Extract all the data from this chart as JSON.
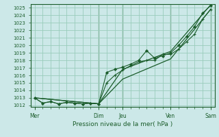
{
  "bg_color": "#cce8e8",
  "grid_color": "#99ccbb",
  "line_color": "#1a5c2a",
  "ylabel_text": "Pression niveau de la mer( hPa )",
  "ylim": [
    1011.8,
    1025.5
  ],
  "yticks": [
    1012,
    1013,
    1014,
    1015,
    1016,
    1017,
    1018,
    1019,
    1020,
    1021,
    1022,
    1023,
    1024,
    1025
  ],
  "xlim": [
    -0.5,
    22.5
  ],
  "xtick_positions": [
    0,
    8,
    11,
    17,
    22
  ],
  "xtick_labels": [
    "Mer",
    "Dim",
    "Jeu",
    "Ven",
    "Sam"
  ],
  "minor_xtick_positions": [
    0,
    1,
    2,
    3,
    4,
    5,
    6,
    7,
    8,
    9,
    10,
    11,
    12,
    13,
    14,
    15,
    16,
    17,
    18,
    19,
    20,
    21,
    22
  ],
  "vlines": [
    8,
    11,
    17,
    22
  ],
  "s1_x": [
    0,
    1,
    2,
    3,
    4,
    5,
    6,
    7,
    8,
    9,
    10,
    11,
    12,
    13,
    14,
    15,
    16,
    17,
    18,
    19,
    20,
    21,
    22
  ],
  "s1_y": [
    1013.0,
    1012.3,
    1012.5,
    1012.2,
    1012.4,
    1012.3,
    1012.2,
    1012.3,
    1012.2,
    1016.4,
    1016.8,
    1017.1,
    1017.5,
    1018.0,
    1019.3,
    1018.3,
    1018.6,
    1019.0,
    1020.0,
    1021.2,
    1022.5,
    1024.3,
    1025.3
  ],
  "s2_x": [
    0,
    1,
    2,
    3,
    4,
    5,
    6,
    7,
    8,
    9,
    10,
    11,
    12,
    13,
    14,
    15,
    16,
    17,
    18,
    19,
    20,
    21,
    22
  ],
  "s2_y": [
    1013.0,
    1012.3,
    1012.5,
    1012.2,
    1012.4,
    1012.3,
    1012.2,
    1012.3,
    1012.2,
    1015.0,
    1016.0,
    1016.7,
    1017.3,
    1017.8,
    1018.0,
    1018.0,
    1018.8,
    1018.8,
    1019.5,
    1020.5,
    1021.5,
    1023.5,
    1024.8
  ],
  "s3_x": [
    0,
    8,
    11,
    17,
    22
  ],
  "s3_y": [
    1013.0,
    1012.2,
    1016.8,
    1019.2,
    1025.4
  ],
  "s4_x": [
    0,
    8,
    11,
    17,
    22
  ],
  "s4_y": [
    1013.0,
    1012.2,
    1015.5,
    1018.2,
    1024.8
  ]
}
